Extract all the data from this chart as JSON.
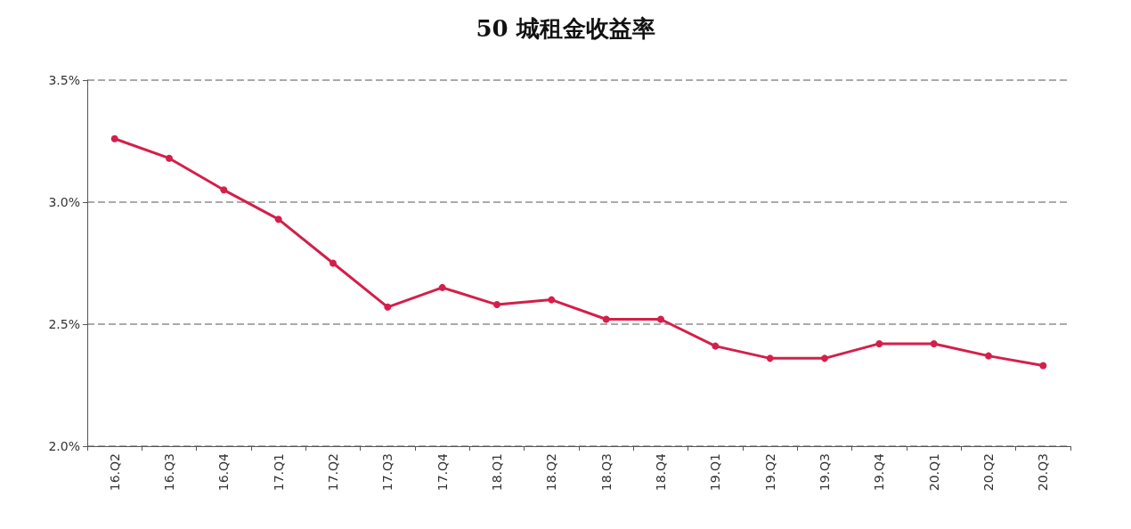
{
  "chart_data": {
    "type": "line",
    "title": "50 城租金收益率",
    "categories": [
      "16.Q2",
      "16.Q3",
      "16.Q4",
      "17.Q1",
      "17.Q2",
      "17.Q3",
      "17.Q4",
      "18.Q1",
      "18.Q2",
      "18.Q3",
      "18.Q4",
      "19.Q1",
      "19.Q2",
      "19.Q3",
      "19.Q4",
      "20.Q1",
      "20.Q2",
      "20.Q3"
    ],
    "series": [
      {
        "color": "#d41f4a",
        "values": [
          3.26,
          3.18,
          3.05,
          2.93,
          2.75,
          2.57,
          2.65,
          2.58,
          2.6,
          2.52,
          2.52,
          2.41,
          2.36,
          2.36,
          2.42,
          2.42,
          2.37,
          2.33
        ]
      }
    ],
    "ylim": [
      2.0,
      3.5
    ],
    "yticks": [
      {
        "value": 2.0,
        "label": "2.0%"
      },
      {
        "value": 2.5,
        "label": "2.5%"
      },
      {
        "value": 3.0,
        "label": "3.0%"
      },
      {
        "value": 3.5,
        "label": "3.5%"
      }
    ],
    "grid": "y",
    "marker": "circle",
    "line_style": "solid"
  }
}
